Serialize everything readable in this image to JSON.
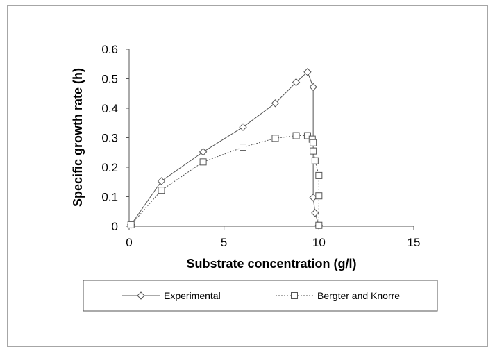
{
  "chart_data": {
    "type": "line",
    "x_label": "Substrate concentration (g/l)",
    "y_label": "Specific growth rate (h)",
    "xlim": [
      0,
      15
    ],
    "xticks": [
      0,
      5,
      10,
      15
    ],
    "ylim": [
      0,
      0.6
    ],
    "yticks": [
      0,
      0.1,
      0.2,
      0.3,
      0.4,
      0.5,
      0.6
    ],
    "series": [
      {
        "name": "Experimental",
        "color": "#555555",
        "marker": "diamond",
        "dash": "solid",
        "x": [
          0.1,
          1.7,
          3.9,
          6.0,
          7.7,
          8.8,
          9.4,
          9.7,
          9.7,
          9.8,
          10.0
        ],
        "values": [
          0.005,
          0.153,
          0.252,
          0.336,
          0.417,
          0.488,
          0.523,
          0.472,
          0.097,
          0.045,
          0.003
        ]
      },
      {
        "name": "Bergter and Knorre",
        "color": "#555555",
        "marker": "square",
        "dash": "dotted",
        "x": [
          0.1,
          1.7,
          3.9,
          6.0,
          7.7,
          8.8,
          9.4,
          9.65,
          9.7,
          9.7,
          9.8,
          10.0,
          10.0,
          10.0
        ],
        "values": [
          0.005,
          0.122,
          0.218,
          0.268,
          0.298,
          0.307,
          0.307,
          0.295,
          0.283,
          0.255,
          0.222,
          0.172,
          0.103,
          0.003
        ]
      }
    ]
  }
}
